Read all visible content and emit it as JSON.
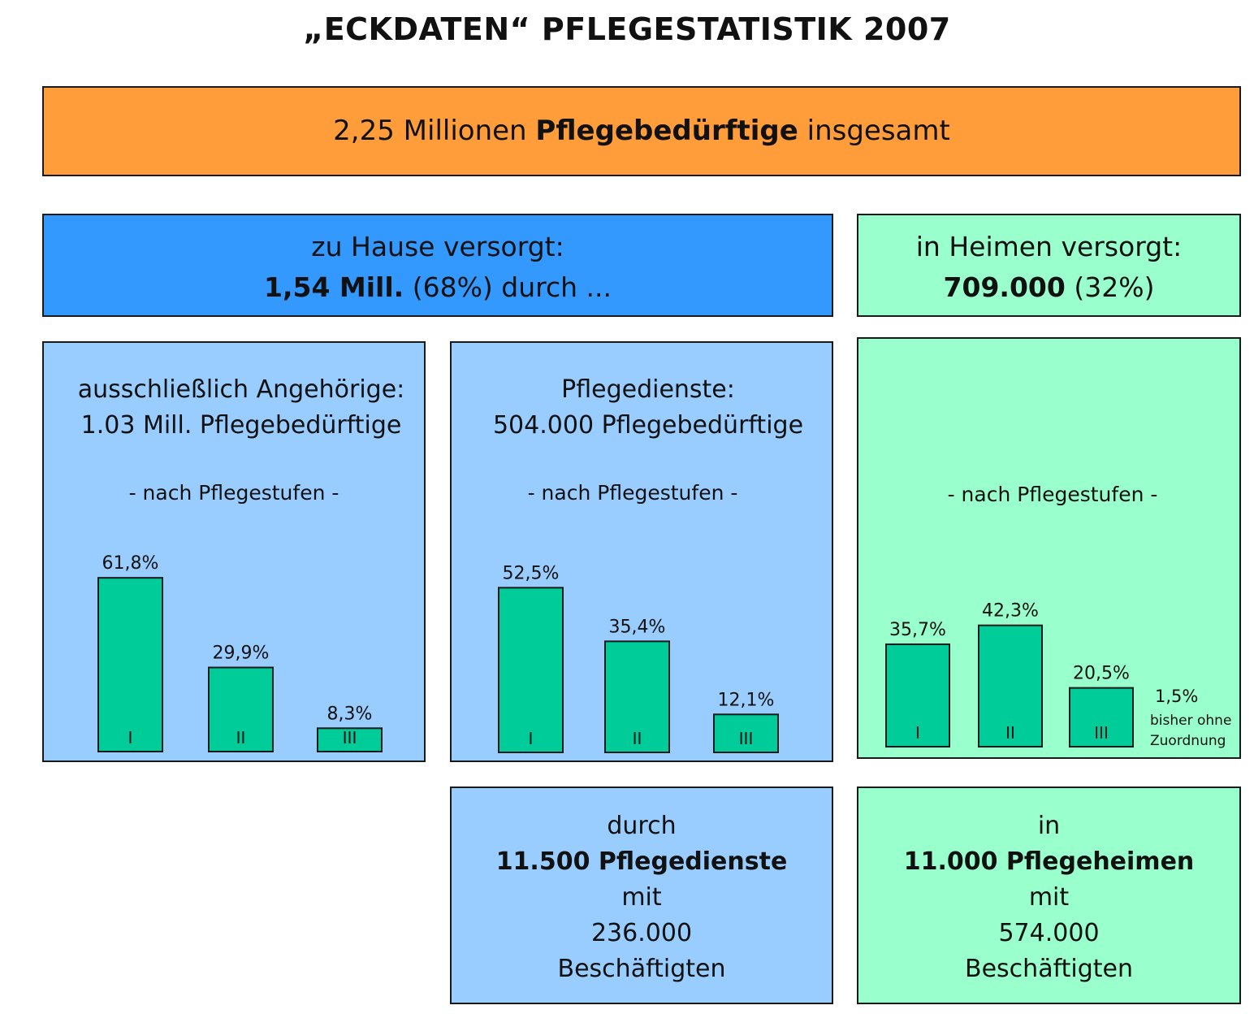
{
  "title": "„ECKDATEN“ PFLEGESTATISTIK 2007",
  "total": {
    "prefix": "2,25 Millionen",
    "bold": "Pflegebedürftige",
    "suffix": "insgesamt"
  },
  "home": {
    "line1": "zu Hause versorgt:",
    "bold": "1,54 Mill.",
    "rest": "(68%) durch ..."
  },
  "heime": {
    "line1": "in Heimen versorgt:",
    "bold": "709.000",
    "rest": "(32%)"
  },
  "panels": {
    "angehoerige": {
      "line1": "ausschließlich Angehörige:",
      "line2": "1.03 Mill. Pflegebedürftige",
      "sub": "- nach Pflegestufen -"
    },
    "dienste": {
      "line1": "Pflegedienste:",
      "line2": "504.000 Pflegebedürftige",
      "sub": "- nach Pflegestufen -"
    },
    "heime": {
      "sub": "- nach Pflegestufen -",
      "extra_value": "1,5%",
      "extra_label1": "bisher ohne",
      "extra_label2": "Zuordnung"
    }
  },
  "bottom": {
    "dienste": {
      "l1": "durch",
      "l2": "11.500 Pflegedienste",
      "l3": "mit",
      "l4": "236.000",
      "l5": "Beschäftigten"
    },
    "heime": {
      "l1": "in",
      "l2": "11.000 Pflegeheimen",
      "l3": "mit",
      "l4": "574.000",
      "l5": "Beschäftigten"
    }
  },
  "colors": {
    "orange": "#ff9d3b",
    "blue": "#3399ff",
    "light_blue": "#99ccff",
    "light_green": "#99ffcc",
    "bar": "#00cc99"
  },
  "chart_data": [
    {
      "type": "bar",
      "title": "ausschließlich Angehörige",
      "categories": [
        "I",
        "II",
        "III"
      ],
      "values": [
        61.8,
        29.9,
        8.3
      ],
      "labels": [
        "61,8%",
        "29,9%",
        "8,3%"
      ]
    },
    {
      "type": "bar",
      "title": "Pflegedienste",
      "categories": [
        "I",
        "II",
        "III"
      ],
      "values": [
        52.5,
        35.4,
        12.1
      ],
      "labels": [
        "52,5%",
        "35,4%",
        "12,1%"
      ]
    },
    {
      "type": "bar",
      "title": "in Heimen",
      "categories": [
        "I",
        "II",
        "III"
      ],
      "values": [
        35.7,
        42.3,
        20.5
      ],
      "labels": [
        "35,7%",
        "42,3%",
        "20,5%"
      ]
    }
  ]
}
